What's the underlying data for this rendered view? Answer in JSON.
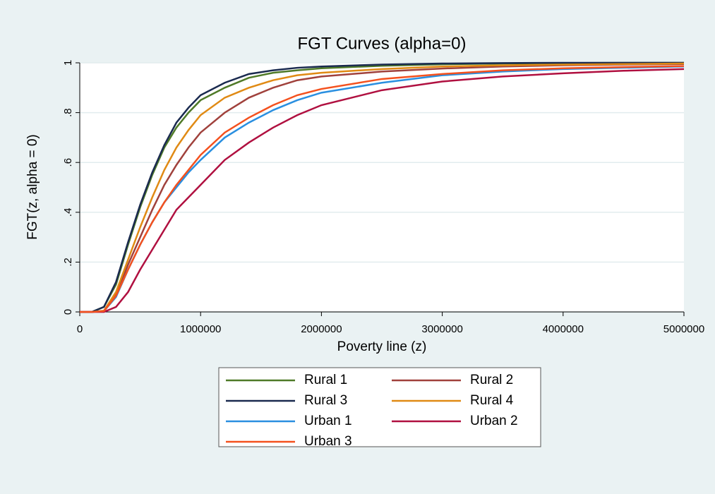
{
  "chart_data": {
    "type": "line",
    "title": "FGT Curves (alpha=0)",
    "xlabel": "Poverty line (z)",
    "ylabel": "FGT(z, alpha = 0)",
    "x": [
      0,
      100000,
      200000,
      300000,
      400000,
      500000,
      600000,
      700000,
      800000,
      900000,
      1000000,
      1200000,
      1400000,
      1600000,
      1800000,
      2000000,
      2500000,
      3000000,
      3500000,
      4000000,
      4500000,
      5000000
    ],
    "xlim": [
      0,
      5000000
    ],
    "xticks": [
      0,
      1000000,
      2000000,
      3000000,
      4000000,
      5000000
    ],
    "ylim": [
      0,
      1
    ],
    "yticks": [
      0,
      {
        "value": 0.2,
        "label": ".2"
      },
      {
        "value": 0.4,
        "label": ".4"
      },
      {
        "value": 0.6,
        "label": ".6"
      },
      {
        "value": 0.8,
        "label": ".8"
      },
      1
    ],
    "grid": true,
    "legend": "bottom",
    "series": [
      {
        "name": "Rural 1",
        "color": "#4f7a28",
        "values": [
          0,
          0,
          0.02,
          0.11,
          0.27,
          0.42,
          0.55,
          0.66,
          0.74,
          0.8,
          0.85,
          0.9,
          0.94,
          0.96,
          0.97,
          0.978,
          0.988,
          0.994,
          0.997,
          0.999,
          1,
          1
        ]
      },
      {
        "name": "Rural 2",
        "color": "#a0413c",
        "values": [
          0,
          0,
          0.003,
          0.07,
          0.19,
          0.3,
          0.41,
          0.51,
          0.59,
          0.66,
          0.72,
          0.8,
          0.86,
          0.9,
          0.93,
          0.945,
          0.965,
          0.977,
          0.985,
          0.99,
          0.993,
          0.995
        ]
      },
      {
        "name": "Rural 3",
        "color": "#1a2a4f",
        "values": [
          0,
          0,
          0.02,
          0.12,
          0.28,
          0.43,
          0.56,
          0.67,
          0.76,
          0.82,
          0.87,
          0.92,
          0.955,
          0.97,
          0.98,
          0.985,
          0.993,
          0.997,
          0.999,
          1,
          1,
          1
        ]
      },
      {
        "name": "Rural 4",
        "color": "#e08a14",
        "values": [
          0,
          0,
          0.005,
          0.08,
          0.21,
          0.34,
          0.46,
          0.57,
          0.66,
          0.73,
          0.79,
          0.86,
          0.9,
          0.93,
          0.95,
          0.96,
          0.975,
          0.985,
          0.99,
          0.993,
          0.995,
          0.997
        ]
      },
      {
        "name": "Urban 1",
        "color": "#2a8fe0",
        "values": [
          0,
          0,
          0.003,
          0.06,
          0.17,
          0.27,
          0.36,
          0.44,
          0.5,
          0.56,
          0.61,
          0.7,
          0.76,
          0.81,
          0.85,
          0.88,
          0.92,
          0.95,
          0.965,
          0.975,
          0.98,
          0.985
        ]
      },
      {
        "name": "Urban 2",
        "color": "#b01040",
        "values": [
          0,
          0,
          0,
          0.02,
          0.08,
          0.17,
          0.25,
          0.33,
          0.41,
          0.46,
          0.51,
          0.61,
          0.68,
          0.74,
          0.79,
          0.83,
          0.89,
          0.925,
          0.945,
          0.958,
          0.968,
          0.975
        ]
      },
      {
        "name": "Urban 3",
        "color": "#f4511e",
        "values": [
          0,
          0,
          0.003,
          0.065,
          0.17,
          0.27,
          0.36,
          0.44,
          0.51,
          0.57,
          0.63,
          0.72,
          0.78,
          0.83,
          0.87,
          0.895,
          0.935,
          0.955,
          0.97,
          0.978,
          0.983,
          0.987
        ]
      }
    ]
  }
}
